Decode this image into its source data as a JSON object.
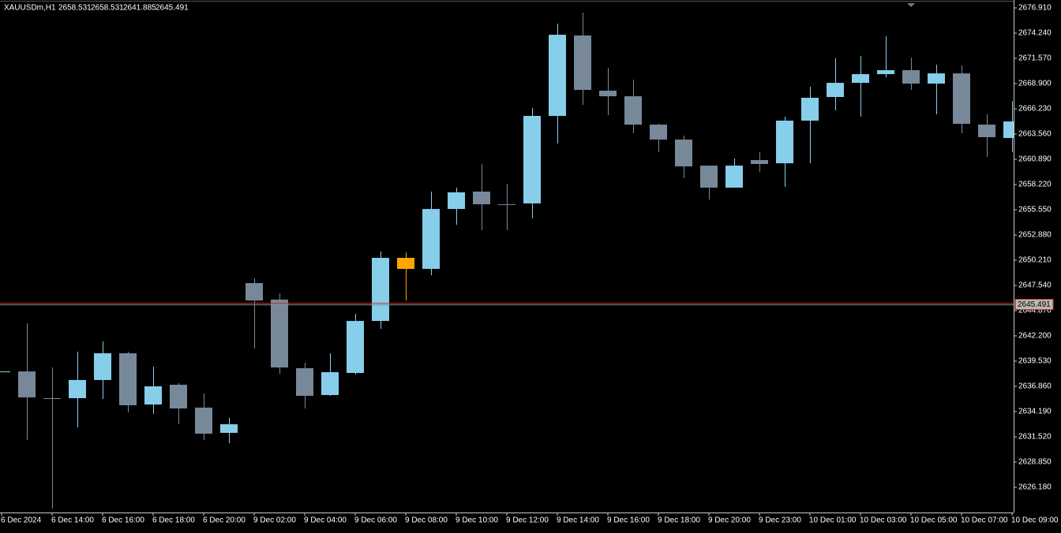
{
  "chart_data": {
    "type": "candlestick",
    "title": "XAUUSDm,H1",
    "readout": [
      2658.531,
      2658.531,
      2641.885,
      2645.491
    ],
    "current_price": {
      "value": 2645.491,
      "label": "2645.491"
    },
    "categories": [
      "6 Dec 2024",
      null,
      "6 Dec 14:00",
      null,
      "6 Dec 16:00",
      null,
      "6 Dec 18:00",
      null,
      "6 Dec 20:00",
      null,
      "9 Dec 02:00",
      null,
      "9 Dec 04:00",
      null,
      "9 Dec 06:00",
      null,
      "9 Dec 08:00",
      null,
      "9 Dec 10:00",
      null,
      "9 Dec 12:00",
      null,
      "9 Dec 14:00",
      null,
      "9 Dec 16:00",
      null,
      "9 Dec 18:00",
      null,
      "9 Dec 20:00",
      null,
      "9 Dec 23:00",
      null,
      "10 Dec 01:00",
      null,
      "10 Dec 03:00",
      null,
      "10 Dec 05:00",
      null,
      "10 Dec 07:00",
      null,
      "10 Dec 09:00"
    ],
    "open": [
      2638.44,
      2638.44,
      2635.61,
      2635.61,
      2637.53,
      2640.36,
      2634.94,
      2637.03,
      2634.61,
      2631.94,
      2647.79,
      2646.04,
      2638.78,
      2635.94,
      2638.28,
      2643.78,
      2650.46,
      2649.29,
      2655.63,
      2657.47,
      2656.13,
      2656.22,
      2665.48,
      2673.99,
      2668.15,
      2667.56,
      2664.56,
      2662.98,
      2660.22,
      2657.89,
      2660.81,
      2660.47,
      2664.98,
      2667.48,
      2668.98,
      2669.9,
      2670.32,
      2668.9,
      2669.98,
      2664.56,
      2663.14
    ],
    "high": [
      2638.44,
      2643.53,
      2638.86,
      2640.53,
      2641.61,
      2640.53,
      2638.94,
      2637.19,
      2636.11,
      2633.52,
      2648.29,
      2646.7,
      2639.36,
      2640.36,
      2644.54,
      2651.13,
      2651.04,
      2657.47,
      2657.89,
      2660.39,
      2658.3,
      2666.31,
      2675.24,
      2676.41,
      2670.57,
      2669.32,
      2664.64,
      2663.39,
      2660.22,
      2660.97,
      2661.64,
      2665.4,
      2668.57,
      2671.57,
      2671.82,
      2673.91,
      2671.65,
      2670.9,
      2670.82,
      2665.65,
      2667.06
    ],
    "low": [
      2638.44,
      2631.18,
      2623.93,
      2632.52,
      2635.52,
      2634.11,
      2633.94,
      2632.85,
      2631.18,
      2630.85,
      2640.86,
      2638.19,
      2634.52,
      2635.86,
      2638.11,
      2642.95,
      2645.95,
      2648.62,
      2653.96,
      2653.38,
      2653.38,
      2654.63,
      2662.56,
      2666.65,
      2665.56,
      2663.64,
      2661.64,
      2658.89,
      2656.63,
      2657.89,
      2659.55,
      2657.97,
      2660.47,
      2666.06,
      2665.4,
      2669.57,
      2668.23,
      2665.65,
      2663.64,
      2661.14,
      2661.64
    ],
    "close": [
      2638.44,
      2635.69,
      2635.61,
      2637.53,
      2640.36,
      2634.86,
      2636.86,
      2634.52,
      2631.85,
      2632.85,
      2645.95,
      2638.86,
      2635.86,
      2638.36,
      2643.78,
      2650.46,
      2649.29,
      2655.63,
      2657.39,
      2656.13,
      2656.13,
      2665.48,
      2674.07,
      2668.23,
      2667.56,
      2664.56,
      2662.98,
      2660.14,
      2657.89,
      2660.22,
      2660.39,
      2664.98,
      2667.4,
      2668.98,
      2669.9,
      2670.32,
      2668.9,
      2669.98,
      2664.64,
      2663.23,
      2664.89
    ],
    "colors": [
      "#87ceeb",
      "#778899",
      "#778899",
      "#87ceeb",
      "#87ceeb",
      "#778899",
      "#87ceeb",
      "#778899",
      "#778899",
      "#87ceeb",
      "#778899",
      "#778899",
      "#778899",
      "#87ceeb",
      "#87ceeb",
      "#87ceeb",
      "#ffa500",
      "#87ceeb",
      "#87ceeb",
      "#778899",
      "#778899",
      "#87ceeb",
      "#87ceeb",
      "#778899",
      "#778899",
      "#778899",
      "#778899",
      "#778899",
      "#778899",
      "#87ceeb",
      "#778899",
      "#87ceeb",
      "#87ceeb",
      "#87ceeb",
      "#87ceeb",
      "#87ceeb",
      "#778899",
      "#87ceeb",
      "#778899",
      "#778899",
      "#87ceeb"
    ],
    "ylim": [
      2623.51,
      2677.58
    ],
    "yticks": [
      {
        "value": 2676.91,
        "label": "2676.910"
      },
      {
        "value": 2674.24,
        "label": "2674.240"
      },
      {
        "value": 2671.57,
        "label": "2671.570"
      },
      {
        "value": 2668.9,
        "label": "2668.900"
      },
      {
        "value": 2666.23,
        "label": "2666.230"
      },
      {
        "value": 2663.56,
        "label": "2663.560"
      },
      {
        "value": 2660.89,
        "label": "2660.890"
      },
      {
        "value": 2658.22,
        "label": "2658.220"
      },
      {
        "value": 2655.55,
        "label": "2655.550"
      },
      {
        "value": 2652.88,
        "label": "2652.880"
      },
      {
        "value": 2650.21,
        "label": "2650.210"
      },
      {
        "value": 2647.54,
        "label": "2647.540"
      },
      {
        "value": 2644.87,
        "label": "2644.870"
      },
      {
        "value": 2642.2,
        "label": "2642.200"
      },
      {
        "value": 2639.53,
        "label": "2639.530"
      },
      {
        "value": 2636.86,
        "label": "2636.860"
      },
      {
        "value": 2634.19,
        "label": "2634.190"
      },
      {
        "value": 2631.52,
        "label": "2631.520"
      },
      {
        "value": 2628.85,
        "label": "2628.850"
      },
      {
        "value": 2626.18,
        "label": "2626.180"
      }
    ],
    "grid": false
  }
}
